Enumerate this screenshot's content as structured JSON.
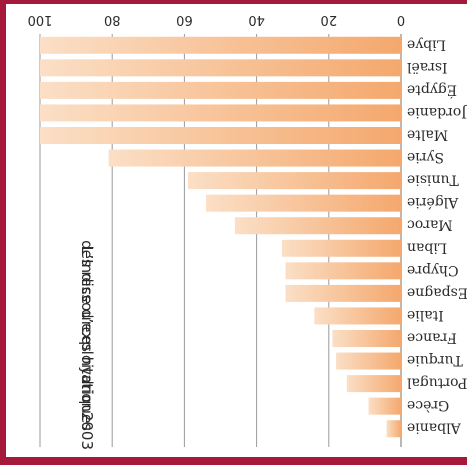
{
  "chart_data": {
    "type": "bar",
    "orientation": "horizontal",
    "title_lines": [
      "L’Indice d’exploitation",
      "des ressources hydriques",
      "2003"
    ],
    "categories": [
      "Libye",
      "Israël",
      "Égypte",
      "Jordanie",
      "Malte",
      "Syrie",
      "Tunisie",
      "Algérie",
      "Maroc",
      "Liban",
      "Chypre",
      "Espagne",
      "Italie",
      "France",
      "Turquie",
      "Portugal",
      "Grèce",
      "Albanie"
    ],
    "values": [
      100,
      100,
      100,
      100,
      100,
      81,
      59,
      54,
      46,
      33,
      32,
      32,
      24,
      19,
      18,
      15,
      9,
      4
    ],
    "xlim": [
      0,
      100
    ],
    "ticks": [
      "0",
      "20",
      "40",
      "60",
      "80",
      "100"
    ],
    "grid": true,
    "colors": {
      "bar_start": "#f4a86d",
      "bar_end": "#fbdfc6",
      "grid": "#9a9a9a",
      "background": "#ffffff",
      "frame": "#a5193b"
    }
  }
}
